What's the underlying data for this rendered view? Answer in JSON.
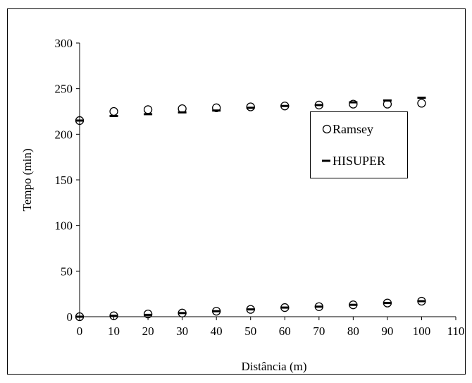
{
  "chart_data": {
    "type": "scatter",
    "xlabel": "Distância (m)",
    "ylabel": "Tempo (min)",
    "xlim": [
      0,
      110
    ],
    "ylim": [
      0,
      300
    ],
    "x_ticks": [
      0,
      10,
      20,
      30,
      40,
      50,
      60,
      70,
      80,
      90,
      100,
      110
    ],
    "y_ticks": [
      0,
      50,
      100,
      150,
      200,
      250,
      300
    ],
    "grid": false,
    "legend_position": "right",
    "series": [
      {
        "name": "Ramsey",
        "marker": "circle",
        "groups": [
          {
            "x": [
              0,
              10,
              20,
              30,
              40,
              50,
              60,
              70,
              80,
              90,
              100
            ],
            "y": [
              0,
              1,
              3,
              4,
              6,
              8,
              10,
              11,
              13,
              15,
              17
            ]
          },
          {
            "x": [
              0,
              10,
              20,
              30,
              40,
              50,
              60,
              70,
              80,
              90,
              100
            ],
            "y": [
              215,
              225,
              227,
              228,
              229,
              230,
              231,
              232,
              233,
              233,
              234
            ]
          }
        ]
      },
      {
        "name": "HISUPER",
        "marker": "dash",
        "groups": [
          {
            "x": [
              0,
              10,
              20,
              30,
              40,
              50,
              60,
              70,
              80,
              90,
              100
            ],
            "y": [
              0,
              1,
              2,
              4,
              6,
              8,
              10,
              11,
              13,
              15,
              17
            ]
          },
          {
            "x": [
              0,
              10,
              20,
              30,
              40,
              50,
              60,
              70,
              80,
              90,
              100
            ],
            "y": [
              215,
              220,
              222,
              224,
              226,
              229,
              231,
              232,
              235,
              237,
              240
            ]
          }
        ]
      }
    ]
  }
}
